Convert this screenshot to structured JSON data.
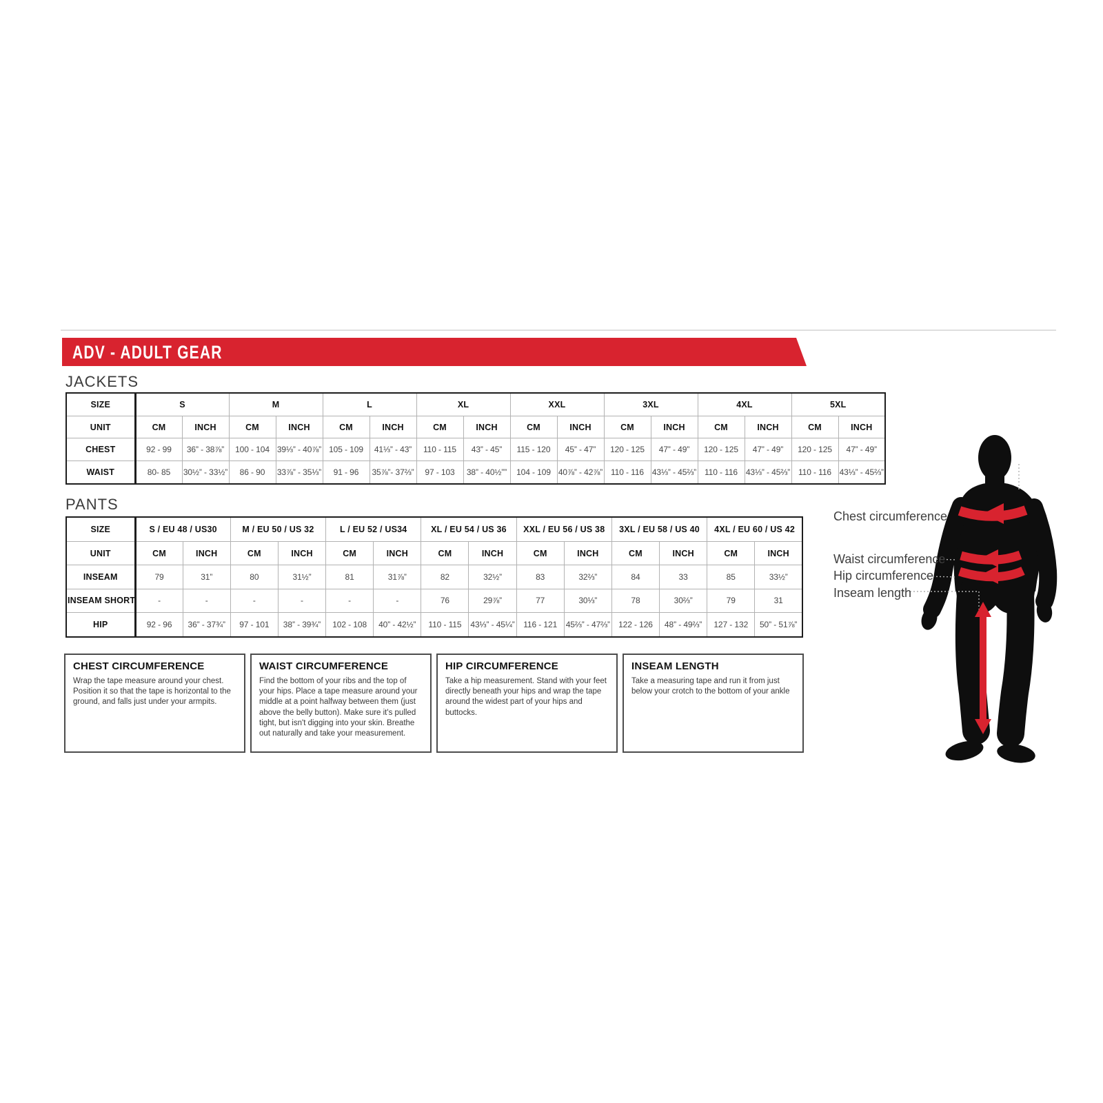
{
  "colors": {
    "accent": "#d8232f",
    "silhouette": "#0e0e0e"
  },
  "banner": {
    "title": "ADV - ADULT GEAR"
  },
  "jackets": {
    "section_label": "JACKETS",
    "corner_label": "SIZE",
    "unit_label": "UNIT",
    "cm_label": "CM",
    "inch_label": "INCH",
    "sizes": [
      "S",
      "M",
      "L",
      "XL",
      "XXL",
      "3XL",
      "4XL",
      "5XL"
    ],
    "rows": [
      {
        "label": "CHEST",
        "values": [
          [
            "92 - 99",
            "36” - 38⅞”"
          ],
          [
            "100 - 104",
            "39⅓” - 40⅞”"
          ],
          [
            "105 - 109",
            "41⅓” - 43”"
          ],
          [
            "110 - 115",
            "43” - 45”"
          ],
          [
            "115 - 120",
            "45” - 47”"
          ],
          [
            "120 - 125",
            "47” - 49”"
          ],
          [
            "120 - 125",
            "47” - 49”"
          ],
          [
            "120 - 125",
            "47” - 49”"
          ]
        ]
      },
      {
        "label": "WAIST",
        "values": [
          [
            "80- 85",
            "30½” - 33½”"
          ],
          [
            "86 - 90",
            "33⅞” - 35⅓”"
          ],
          [
            "91 - 96",
            "35⅞”- 37⅔”"
          ],
          [
            "97 - 103",
            "38” - 40½””"
          ],
          [
            "104 - 109",
            "40⅞” - 42⅞”"
          ],
          [
            "110 - 116",
            "43⅓” - 45⅔”"
          ],
          [
            "110 - 116",
            "43⅓” - 45⅔”"
          ],
          [
            "110 - 116",
            "43⅓” - 45⅔”"
          ]
        ]
      }
    ]
  },
  "pants": {
    "section_label": "PANTS",
    "corner_label": "SIZE",
    "unit_label": "UNIT",
    "cm_label": "CM",
    "inch_label": "INCH",
    "sizes": [
      "S / EU 48 / US30",
      "M / EU 50 / US 32",
      "L / EU 52 / US34",
      "XL / EU 54 / US 36",
      "XXL / EU 56 / US 38",
      "3XL / EU 58 / US 40",
      "4XL / EU 60 / US 42"
    ],
    "rows": [
      {
        "label": "INSEAM",
        "values": [
          [
            "79",
            "31”"
          ],
          [
            "80",
            "31½”"
          ],
          [
            "81",
            "31⅞”"
          ],
          [
            "82",
            "32½”"
          ],
          [
            "83",
            "32⅔”"
          ],
          [
            "84",
            "33"
          ],
          [
            "85",
            "33½”"
          ]
        ]
      },
      {
        "label": "INSEAM SHORT",
        "values": [
          [
            "-",
            "-"
          ],
          [
            "-",
            "-"
          ],
          [
            "-",
            "-"
          ],
          [
            "76",
            "29⅞”"
          ],
          [
            "77",
            "30⅓”"
          ],
          [
            "78",
            "30⅔”"
          ],
          [
            "79",
            "31"
          ]
        ]
      },
      {
        "label": "HIP",
        "values": [
          [
            "92 - 96",
            "36” - 37¾”"
          ],
          [
            "97 - 101",
            "38” - 39¾”"
          ],
          [
            "102 - 108",
            "40” - 42½”"
          ],
          [
            "110 - 115",
            "43⅓” - 45¼”"
          ],
          [
            "116 - 121",
            "45⅔” - 47⅔”"
          ],
          [
            "122 - 126",
            "48” - 49⅔”"
          ],
          [
            "127 - 132",
            "50” - 51⅞”"
          ]
        ]
      }
    ]
  },
  "instructions": [
    {
      "title": "CHEST CIRCUMFERENCE",
      "body": "Wrap the tape measure around your chest. Position it so that the tape is horizontal to the ground, and falls just under your armpits."
    },
    {
      "title": "WAIST CIRCUMFERENCE",
      "body": "Find the bottom of your ribs and the top of your hips. Place a tape measure around your middle at a point halfway between them (just above the belly button). Make sure it's pulled tight, but isn't digging into your skin. Breathe out naturally and take your measurement."
    },
    {
      "title": "HIP CIRCUMFERENCE",
      "body": "Take a hip measurement. Stand with your feet directly beneath your hips and wrap the tape around the widest part of your hips and buttocks."
    },
    {
      "title": "INSEAM LENGTH",
      "body": "Take a measuring tape and run it from just below your crotch to the bottom of your ankle"
    }
  ],
  "figure": {
    "chest_label": "Chest circumference",
    "waist_label": "Waist circumference",
    "hip_label": "Hip circumference",
    "inseam_label": "Inseam length"
  }
}
